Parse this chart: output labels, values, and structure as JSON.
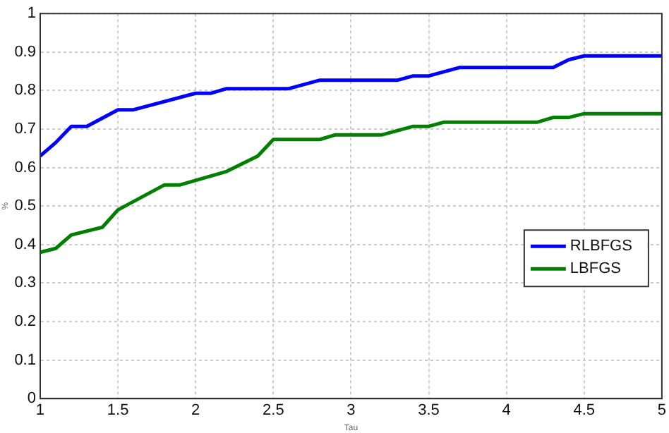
{
  "chart_data": {
    "type": "line",
    "xlabel": "Tau",
    "ylabel": "%",
    "xlim": [
      1,
      5
    ],
    "ylim": [
      0,
      1
    ],
    "xticks": [
      1,
      1.5,
      2,
      2.5,
      3,
      3.5,
      4,
      4.5,
      5
    ],
    "yticks": [
      0,
      0.1,
      0.2,
      0.3,
      0.4,
      0.5,
      0.6,
      0.7,
      0.8,
      0.9,
      1
    ],
    "grid": true,
    "legend": "bottom right",
    "marker": "none",
    "line_style": "solid",
    "series": [
      {
        "name": "RLBFGS",
        "color": "#0000ff",
        "x": [
          1,
          1.1,
          1.2,
          1.3,
          1.5,
          1.6,
          2,
          2.1,
          2.2,
          2.6,
          2.8,
          3.3,
          3.4,
          3.5,
          3.7,
          4.3,
          4.4,
          4.5,
          5
        ],
        "values": [
          0.63,
          0.665,
          0.707,
          0.707,
          0.75,
          0.75,
          0.793,
          0.793,
          0.805,
          0.805,
          0.827,
          0.827,
          0.838,
          0.838,
          0.86,
          0.86,
          0.88,
          0.89,
          0.89
        ]
      },
      {
        "name": "LBFGS",
        "color": "#008000",
        "x": [
          1,
          1.1,
          1.2,
          1.4,
          1.5,
          1.8,
          1.9,
          2.2,
          2.4,
          2.5,
          2.8,
          2.9,
          3.2,
          3.4,
          3.5,
          3.6,
          4.2,
          4.3,
          4.4,
          4.5,
          5
        ],
        "values": [
          0.38,
          0.39,
          0.425,
          0.445,
          0.49,
          0.555,
          0.555,
          0.59,
          0.63,
          0.673,
          0.673,
          0.685,
          0.685,
          0.707,
          0.707,
          0.718,
          0.718,
          0.73,
          0.73,
          0.74,
          0.74
        ]
      }
    ]
  }
}
